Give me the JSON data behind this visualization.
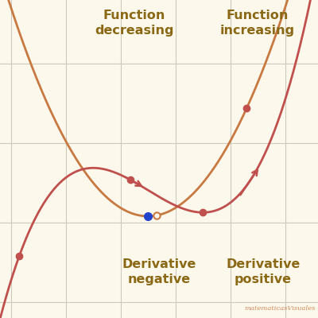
{
  "bg_color": "#fdf8ec",
  "grid_color": "#cdc9bc",
  "curve_color": "#c0504d",
  "deriv_color": "#c87941",
  "text_color": "#8B6914",
  "blue_dot_color": "#2244cc",
  "xlim": [
    -2.2,
    3.6
  ],
  "ylim": [
    -1.7,
    2.3
  ],
  "text_func_dec": "Function\ndecreasing",
  "text_func_inc": "Function\nincreasing",
  "text_deriv_neg": "Derivative\nnegative",
  "text_deriv_pos": "Derivative\npositive",
  "watermark": "matematicasVisuales",
  "fontsize_labels": 11.5
}
